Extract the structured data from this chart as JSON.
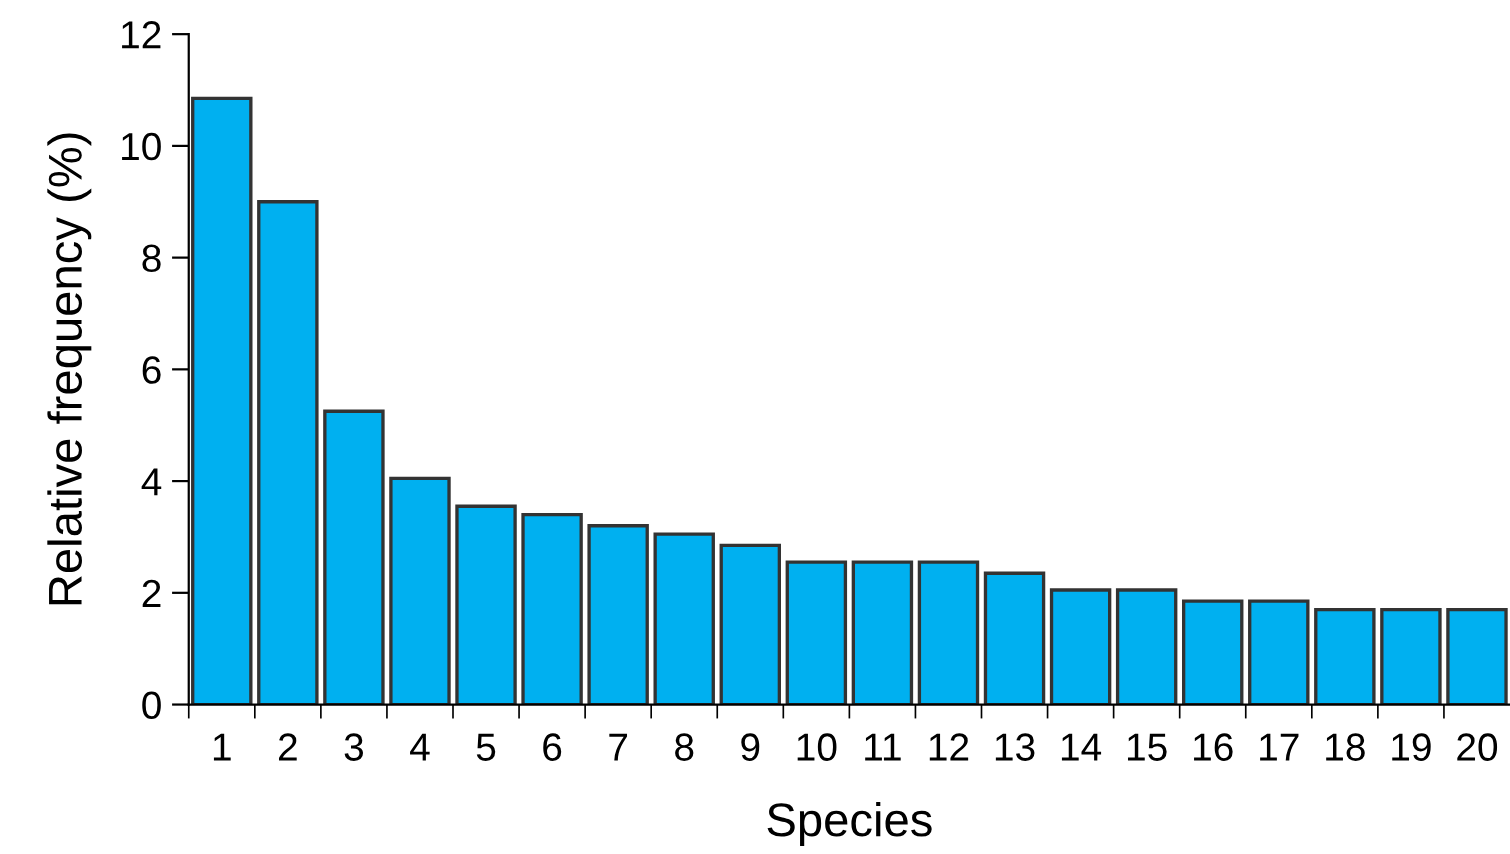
{
  "chart_data": {
    "type": "bar",
    "xlabel": "Species",
    "ylabel": "Relative frequency (%)",
    "categories": [
      "1",
      "2",
      "3",
      "4",
      "5",
      "6",
      "7",
      "8",
      "9",
      "10",
      "11",
      "12",
      "13",
      "14",
      "15",
      "16",
      "17",
      "18",
      "19",
      "20"
    ],
    "values": [
      10.85,
      9.0,
      5.25,
      4.05,
      3.55,
      3.4,
      3.2,
      3.05,
      2.85,
      2.55,
      2.55,
      2.55,
      2.35,
      2.05,
      2.05,
      1.85,
      1.85,
      1.7,
      1.7,
      1.7
    ],
    "color": "#00b0f0",
    "ylim": [
      0,
      12
    ],
    "yticks": [
      0,
      2,
      4,
      6,
      8,
      10,
      12
    ],
    "grid": false,
    "legend": false
  }
}
